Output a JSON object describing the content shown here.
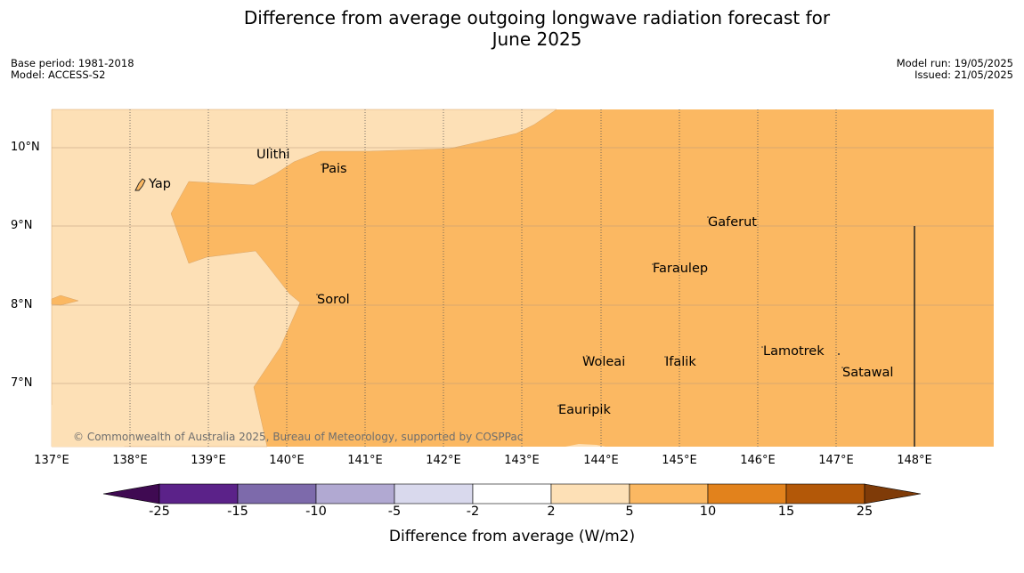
{
  "title_line1": "Difference from average outgoing longwave radiation forecast for",
  "title_line2": "June 2025",
  "meta_left": [
    "Base period: 1981-2018",
    "Model: ACCESS-S2"
  ],
  "meta_right": [
    "Model run: 19/05/2025",
    "Issued: 21/05/2025"
  ],
  "lat_labels": [
    "10°N",
    "9°N",
    "8°N",
    "7°N"
  ],
  "lon_labels": [
    "137°E",
    "138°E",
    "139°E",
    "140°E",
    "141°E",
    "142°E",
    "143°E",
    "144°E",
    "145°E",
    "146°E",
    "147°E",
    "148°E"
  ],
  "places": [
    "Ulithi",
    "Yap",
    "Pais",
    "Gaferut",
    "Faraulep",
    "Sorol",
    "Lamotrek",
    "Woleai",
    "Ifalik",
    "Satawal",
    "Eauripik"
  ],
  "copyright": "© Commonwealth of Australia 2025, Bureau of Meteorology, supported by COSPPac",
  "colorbar": {
    "label": "Difference from average (W/m2)",
    "ticks": [
      "-25",
      "-15",
      "-10",
      "-5",
      "-2",
      "2",
      "5",
      "10",
      "15",
      "25"
    ],
    "colors": [
      "#3f0a52",
      "#5b2289",
      "#7d6aab",
      "#b1a9d2",
      "#d9d9ed",
      "#ffffff",
      "#fde0b6",
      "#fbb862",
      "#e2821c",
      "#b35808",
      "#7f3b08"
    ]
  },
  "map_colors": {
    "band_2_5": "#fde0b6",
    "band_5_10": "#fbb862"
  }
}
